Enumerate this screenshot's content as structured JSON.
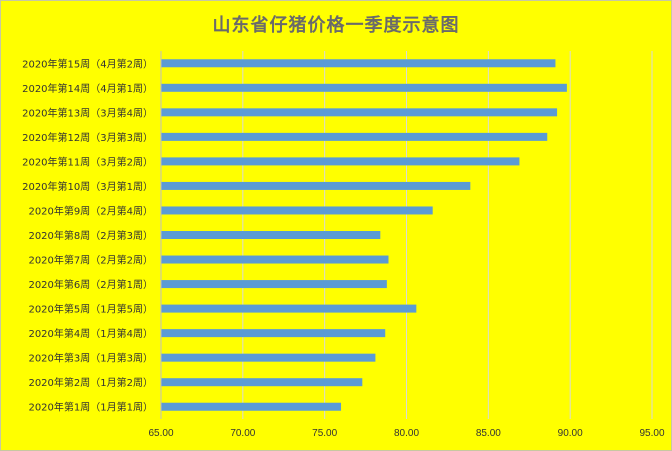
{
  "chart_data": {
    "type": "bar",
    "orientation": "horizontal",
    "title": "山东省仔猪价格一季度示意图",
    "categories": [
      "2020年第1周（1月第1周）",
      "2020年第2周（1月第2周）",
      "2020年第3周（1月第3周）",
      "2020年第4周（1月第4周）",
      "2020年第5周（1月第5周）",
      "2020年第6周（2月第1周）",
      "2020年第7周（2月第2周）",
      "2020年第8周（2月第3周）",
      "2020年第9周（2月第4周）",
      "2020年第10周（3月第1周）",
      "2020年第11周（3月第2周）",
      "2020年第12周（3月第3周）",
      "2020年第13周（3月第4周）",
      "2020年第14周（4月第1周）",
      "2020年第15周（4月第2周）"
    ],
    "values": [
      76.0,
      77.3,
      78.1,
      78.7,
      80.6,
      78.8,
      78.9,
      78.4,
      81.6,
      83.9,
      86.9,
      88.6,
      89.2,
      89.8,
      89.1
    ],
    "xlim": [
      65,
      95
    ],
    "xticks": [
      "65.00",
      "70.00",
      "75.00",
      "80.00",
      "85.00",
      "90.00",
      "95.00"
    ],
    "grid": true,
    "bar_color": "#5b9bd5",
    "grid_color": "#d9d9d9",
    "background": "#ffff00"
  }
}
